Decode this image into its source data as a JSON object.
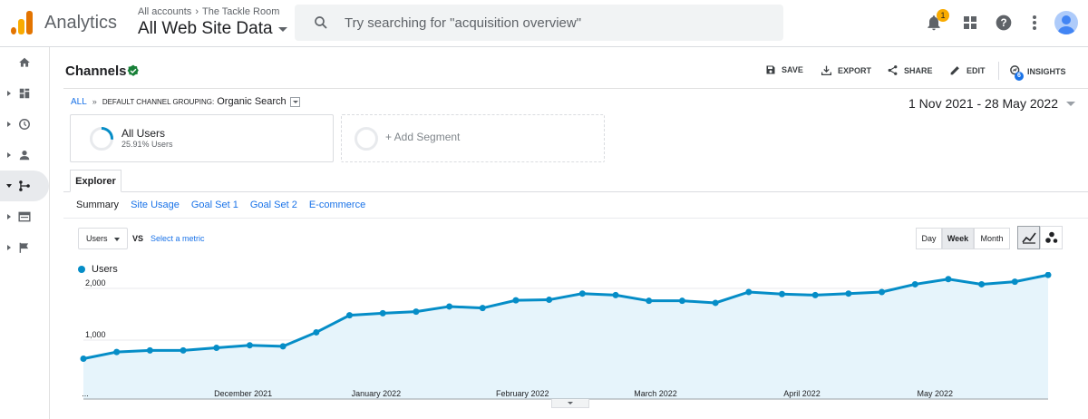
{
  "app": {
    "name": "Analytics",
    "logo": "analytics-logo"
  },
  "account": {
    "crumb_all": "All accounts",
    "crumb_sep": "›",
    "crumb_account": "The Tackle Room",
    "property": "All Web Site Data"
  },
  "search": {
    "placeholder": "Try searching for \"acquisition overview\"",
    "icon": "search-icon"
  },
  "topbar": {
    "notification_count": "1",
    "icons": [
      "bell-icon",
      "apps-grid-icon",
      "help-icon",
      "more-vert-icon",
      "avatar"
    ]
  },
  "leftnav": {
    "items": [
      "home-icon",
      "customization-icon",
      "realtime-icon",
      "audience-icon",
      "acquisition-icon",
      "behavior-icon",
      "conversions-icon"
    ],
    "active": "acquisition-icon"
  },
  "report": {
    "title": "Channels",
    "actions": {
      "save": "SAVE",
      "export": "EXPORT",
      "share": "SHARE",
      "edit": "EDIT",
      "insights": "INSIGHTS"
    },
    "insights_badge": "6"
  },
  "breadcrumb": {
    "all": "ALL",
    "sep": "»",
    "dimension": "DEFAULT CHANNEL GROUPING:",
    "value": "Organic Search"
  },
  "daterange": "1 Nov 2021 - 28 May 2022",
  "segments": {
    "segment1_name": "All Users",
    "segment1_pct": "25.91% Users",
    "segment1_fraction": 0.2591,
    "add": "+ Add Segment"
  },
  "explorer": {
    "tab": "Explorer",
    "subtabs": [
      "Summary",
      "Site Usage",
      "Goal Set 1",
      "Goal Set 2",
      "E-commerce"
    ]
  },
  "metric": {
    "selected": "Users",
    "vs": "VS",
    "select_metric": "Select a metric"
  },
  "period_buttons": [
    "Day",
    "Week",
    "Month"
  ],
  "period_selected": "Week",
  "colors": {
    "series": "#058dc7",
    "fill": "#e6f4fb",
    "accent": "#1a73e8",
    "verified": "#188038"
  },
  "chart_data": {
    "type": "area",
    "series": [
      {
        "name": "Users",
        "values": [
          640,
          770,
          800,
          800,
          850,
          900,
          880,
          1150,
          1480,
          1520,
          1550,
          1650,
          1620,
          1770,
          1780,
          1900,
          1870,
          1760,
          1760,
          1720,
          1930,
          1890,
          1870,
          1900,
          1930,
          2080,
          2180,
          2080,
          2130,
          2260
        ]
      }
    ],
    "x_tick_labels": [
      "...",
      "December 2021",
      "January 2022",
      "February 2022",
      "March 2022",
      "April 2022",
      "May 2022"
    ],
    "x_tick_index": [
      0,
      4.8,
      8.8,
      13.2,
      17.2,
      21.6,
      25.6
    ],
    "y_ticks": [
      1000,
      2000
    ],
    "y_tick_labels": [
      "1,000",
      "2,000"
    ],
    "ylim": [
      0,
      2400
    ],
    "legend": "top-left"
  }
}
